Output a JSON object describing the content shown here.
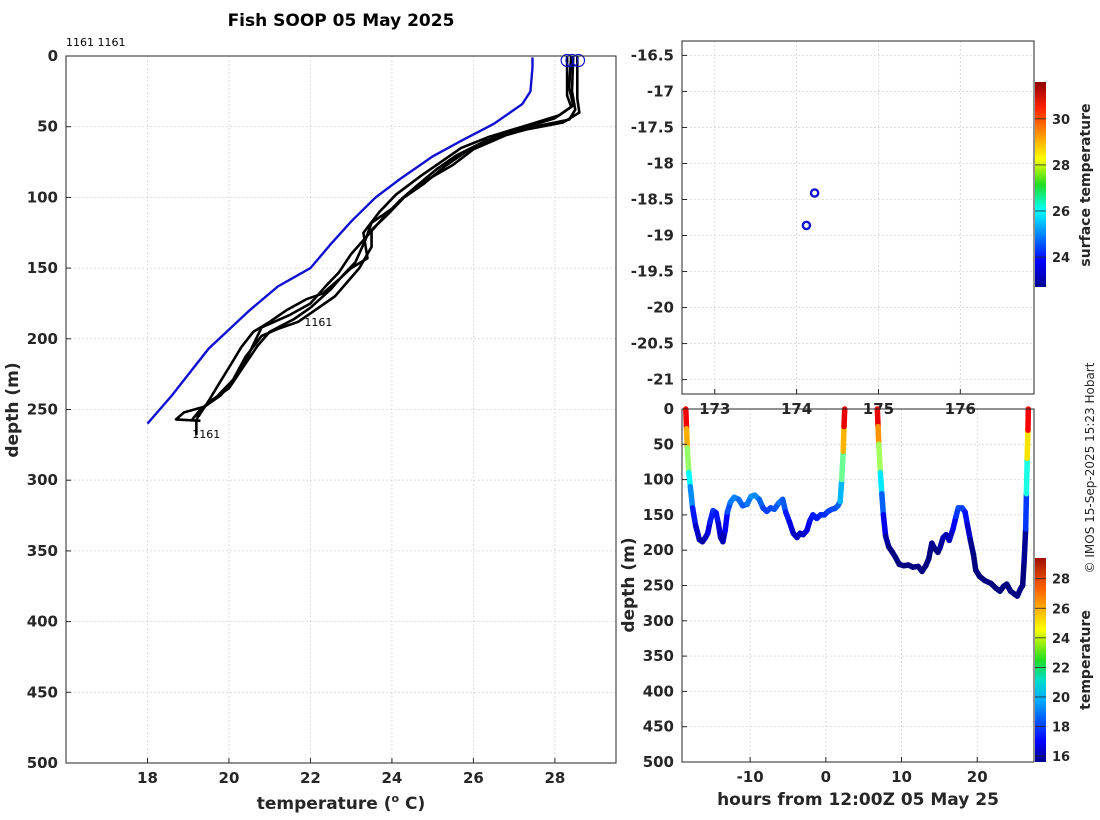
{
  "title": "Fish SOOP 05 May 2025",
  "credit": "© IMOS 15-Sep-2025 15:23 Hobart",
  "profile_ids_top": "1161 1161",
  "chart_data": [
    {
      "type": "line",
      "name": "temperature-depth-profiles",
      "xlabel_main": "temperature (",
      "xlabel_sup": "o",
      "xlabel_end": " C)",
      "ylabel": "depth (m)",
      "xlim": [
        16,
        29.5
      ],
      "ylim": [
        500,
        0
      ],
      "xticks": [
        18,
        20,
        22,
        24,
        26,
        28
      ],
      "yticks": [
        0,
        50,
        100,
        150,
        200,
        250,
        300,
        350,
        400,
        450,
        500
      ],
      "grid": true,
      "annotations": [
        {
          "text": "1161",
          "x": 21.85,
          "y": 191
        },
        {
          "text": "1161",
          "x": 19.1,
          "y": 270
        }
      ],
      "reference_line": {
        "color": "#1010d0",
        "points": [
          [
            27.45,
            1
          ],
          [
            27.45,
            8
          ],
          [
            27.4,
            25
          ],
          [
            27.2,
            34
          ],
          [
            26.5,
            48
          ],
          [
            25.7,
            60
          ],
          [
            25.0,
            71
          ],
          [
            24.2,
            87
          ],
          [
            23.6,
            100
          ],
          [
            23.0,
            117
          ],
          [
            22.5,
            133
          ],
          [
            22.0,
            150
          ],
          [
            21.2,
            163
          ],
          [
            20.5,
            180
          ],
          [
            19.5,
            207
          ],
          [
            18.6,
            240
          ],
          [
            18.0,
            260
          ]
        ]
      },
      "series": [
        {
          "values": [
            [
              28.45,
              0
            ],
            [
              28.42,
              25
            ],
            [
              28.5,
              38
            ],
            [
              28.35,
              45
            ],
            [
              27.5,
              50
            ],
            [
              26.8,
              56
            ],
            [
              26.0,
              66
            ],
            [
              25.5,
              77
            ],
            [
              24.9,
              87
            ],
            [
              24.4,
              97
            ],
            [
              24.0,
              108
            ],
            [
              23.5,
              118
            ],
            [
              23.35,
              130
            ],
            [
              23.1,
              146
            ],
            [
              22.8,
              155
            ],
            [
              22.5,
              165
            ],
            [
              22.0,
              178
            ],
            [
              21.6,
              186
            ],
            [
              21.0,
              195
            ],
            [
              20.7,
              205
            ],
            [
              20.35,
              220
            ],
            [
              20.0,
              235
            ],
            [
              19.6,
              243
            ],
            [
              19.3,
              250
            ],
            [
              19.2,
              258
            ],
            [
              19.2,
              268
            ]
          ]
        },
        {
          "values": [
            [
              28.3,
              0
            ],
            [
              28.3,
              28
            ],
            [
              28.4,
              36
            ],
            [
              28.0,
              44
            ],
            [
              27.1,
              52
            ],
            [
              26.3,
              60
            ],
            [
              25.6,
              70
            ],
            [
              25.1,
              80
            ],
            [
              24.6,
              92
            ],
            [
              24.2,
              102
            ],
            [
              23.8,
              114
            ],
            [
              23.4,
              127
            ],
            [
              23.0,
              140
            ],
            [
              22.7,
              153
            ],
            [
              22.4,
              162
            ],
            [
              22.0,
              175
            ],
            [
              21.5,
              183
            ],
            [
              20.8,
              192
            ],
            [
              20.5,
              210
            ],
            [
              20.2,
              226
            ],
            [
              19.8,
              240
            ],
            [
              19.4,
              248
            ],
            [
              18.9,
              252
            ],
            [
              18.7,
              257
            ],
            [
              19.3,
              258
            ]
          ]
        },
        {
          "values": [
            [
              28.55,
              0
            ],
            [
              28.55,
              30
            ],
            [
              28.6,
              40
            ],
            [
              28.2,
              47
            ],
            [
              27.3,
              52
            ],
            [
              26.5,
              58
            ],
            [
              25.8,
              68
            ],
            [
              25.3,
              78
            ],
            [
              24.8,
              90
            ],
            [
              24.3,
              100
            ],
            [
              23.9,
              112
            ],
            [
              23.5,
              123
            ],
            [
              23.5,
              135
            ],
            [
              23.2,
              150
            ],
            [
              22.9,
              160
            ],
            [
              22.6,
              170
            ],
            [
              22.1,
              180
            ],
            [
              21.7,
              188
            ],
            [
              21.2,
              193
            ],
            [
              20.8,
              198
            ],
            [
              20.4,
              213
            ],
            [
              20.1,
              229
            ],
            [
              19.7,
              241
            ],
            [
              19.3,
              250
            ],
            [
              19.1,
              257
            ]
          ]
        },
        {
          "values": [
            [
              28.4,
              0
            ],
            [
              28.35,
              22
            ],
            [
              28.45,
              35
            ],
            [
              28.1,
              42
            ],
            [
              27.2,
              50
            ],
            [
              26.4,
              57
            ],
            [
              25.7,
              65
            ],
            [
              25.2,
              75
            ],
            [
              24.7,
              85
            ],
            [
              24.1,
              98
            ],
            [
              23.7,
              110
            ],
            [
              23.3,
              125
            ],
            [
              23.4,
              143
            ],
            [
              23.0,
              150
            ],
            [
              22.7,
              158
            ],
            [
              22.3,
              168
            ],
            [
              21.9,
              172
            ],
            [
              21.4,
              180
            ],
            [
              21.0,
              188
            ],
            [
              20.6,
              195
            ],
            [
              20.3,
              206
            ],
            [
              20.05,
              218
            ],
            [
              19.75,
              232
            ],
            [
              19.5,
              244
            ],
            [
              19.25,
              255
            ]
          ]
        }
      ],
      "surface_markers": [
        [
          28.3,
          1
        ],
        [
          28.42,
          1
        ],
        [
          28.58,
          1
        ]
      ]
    },
    {
      "type": "scatter",
      "name": "position-map",
      "colorbar_label": "surface temperature",
      "xlim": [
        172.6,
        176.9
      ],
      "ylim": [
        -21.2,
        -16.3
      ],
      "xticks": [
        173,
        174,
        175,
        176
      ],
      "yticks": [
        -16.5,
        -17,
        -17.5,
        -18,
        -18.5,
        -19,
        -19.5,
        -20,
        -20.5,
        -21
      ],
      "grid": true,
      "colorbar": {
        "range": [
          22.7,
          31.6
        ],
        "ticks": [
          24,
          26,
          28,
          30
        ]
      },
      "points": [
        {
          "x": 174.22,
          "y": -18.41
        },
        {
          "x": 174.12,
          "y": -18.86
        }
      ]
    },
    {
      "type": "line",
      "name": "depth-time-section",
      "xlabel": "hours from 12:00Z 05 May 25",
      "ylabel": "depth (m)",
      "colorbar_label": "temperature",
      "xlim": [
        -19,
        27.5
      ],
      "ylim": [
        500,
        0
      ],
      "xticks": [
        -10,
        0,
        10,
        20
      ],
      "yticks": [
        0,
        50,
        100,
        150,
        200,
        250,
        300,
        350,
        400,
        450,
        500
      ],
      "grid": true,
      "colorbar": {
        "range": [
          15.6,
          29.4
        ],
        "ticks": [
          16,
          18,
          20,
          22,
          24,
          26,
          28
        ]
      },
      "segments": [
        [
          [
            -18.5,
            0
          ],
          [
            -18.4,
            28
          ],
          [
            -18.3,
            55
          ],
          [
            -18.1,
            90
          ],
          [
            -17.9,
            110
          ],
          [
            -17.6,
            140
          ],
          [
            -17.2,
            165
          ],
          [
            -16.7,
            185
          ],
          [
            -16.3,
            188
          ],
          [
            -15.9,
            182
          ],
          [
            -15.6,
            176
          ],
          [
            -15.3,
            160
          ],
          [
            -14.9,
            144
          ],
          [
            -14.5,
            147
          ],
          [
            -14.2,
            162
          ],
          [
            -13.9,
            182
          ],
          [
            -13.6,
            188
          ],
          [
            -13.3,
            172
          ],
          [
            -13.0,
            146
          ],
          [
            -12.6,
            132
          ],
          [
            -12.1,
            125
          ],
          [
            -11.5,
            128
          ],
          [
            -11.0,
            137
          ],
          [
            -10.4,
            135
          ],
          [
            -9.9,
            124
          ],
          [
            -9.4,
            122
          ],
          [
            -8.8,
            128
          ],
          [
            -8.3,
            140
          ],
          [
            -7.8,
            145
          ],
          [
            -7.3,
            140
          ],
          [
            -6.8,
            142
          ],
          [
            -6.2,
            133
          ],
          [
            -5.7,
            128
          ],
          [
            -5.3,
            146
          ],
          [
            -4.8,
            160
          ],
          [
            -4.3,
            176
          ],
          [
            -3.8,
            182
          ],
          [
            -3.4,
            176
          ],
          [
            -3.0,
            178
          ],
          [
            -2.5,
            172
          ],
          [
            -2.1,
            158
          ],
          [
            -1.7,
            150
          ],
          [
            -1.2,
            155
          ],
          [
            -0.7,
            150
          ],
          [
            -0.2,
            150
          ],
          [
            0.3,
            145
          ],
          [
            0.8,
            142
          ],
          [
            1.2,
            141
          ],
          [
            1.6,
            137
          ],
          [
            1.9,
            131
          ],
          [
            2.1,
            100
          ],
          [
            2.3,
            60
          ],
          [
            2.4,
            25
          ],
          [
            2.5,
            0
          ]
        ],
        [
          [
            6.8,
            0
          ],
          [
            6.9,
            25
          ],
          [
            7.0,
            50
          ],
          [
            7.2,
            90
          ],
          [
            7.4,
            120
          ],
          [
            7.6,
            150
          ],
          [
            7.9,
            180
          ],
          [
            8.3,
            195
          ],
          [
            8.8,
            203
          ],
          [
            9.2,
            210
          ],
          [
            9.7,
            220
          ],
          [
            10.3,
            222
          ],
          [
            10.9,
            221
          ],
          [
            11.5,
            224
          ],
          [
            12.2,
            223
          ],
          [
            12.7,
            230
          ],
          [
            13.2,
            222
          ],
          [
            13.6,
            212
          ],
          [
            14.0,
            190
          ],
          [
            14.4,
            198
          ],
          [
            14.8,
            203
          ],
          [
            15.1,
            196
          ],
          [
            15.5,
            182
          ],
          [
            15.9,
            178
          ],
          [
            16.3,
            186
          ],
          [
            16.8,
            170
          ],
          [
            17.2,
            152
          ],
          [
            17.5,
            140
          ],
          [
            18.0,
            140
          ],
          [
            18.4,
            146
          ],
          [
            18.7,
            164
          ],
          [
            19.1,
            186
          ],
          [
            19.5,
            206
          ],
          [
            19.8,
            228
          ],
          [
            20.3,
            237
          ],
          [
            21.0,
            243
          ],
          [
            21.8,
            247
          ],
          [
            22.5,
            254
          ],
          [
            23.0,
            258
          ],
          [
            23.5,
            251
          ],
          [
            23.9,
            248
          ],
          [
            24.4,
            258
          ],
          [
            24.9,
            262
          ],
          [
            25.3,
            265
          ],
          [
            25.7,
            255
          ],
          [
            26.0,
            250
          ],
          [
            26.2,
            215
          ],
          [
            26.4,
            170
          ],
          [
            26.5,
            120
          ],
          [
            26.6,
            70
          ],
          [
            26.7,
            30
          ],
          [
            26.75,
            0
          ]
        ]
      ]
    }
  ]
}
